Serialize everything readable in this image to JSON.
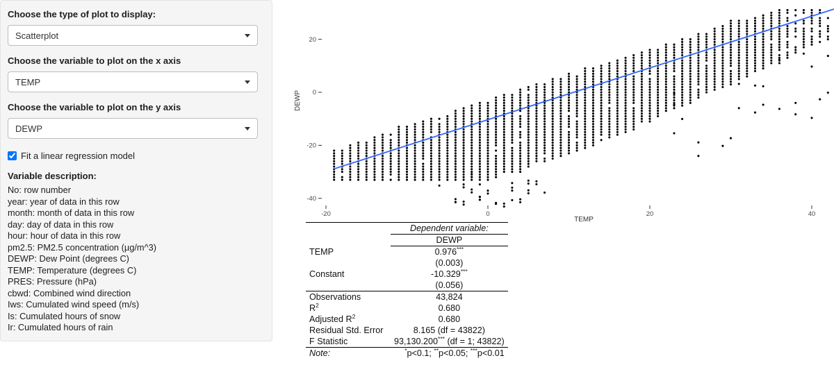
{
  "sidebar": {
    "plot_type": {
      "label": "Choose the type of plot to display:",
      "value": "Scatterplot"
    },
    "x_axis": {
      "label": "Choose the variable to plot on the x axis",
      "value": "TEMP"
    },
    "y_axis": {
      "label": "Choose the variable to plot on the y axis",
      "value": "DEWP"
    },
    "regression": {
      "label": "Fit a linear regression model",
      "checked": true
    },
    "variable_description": {
      "title": "Variable description:",
      "items": [
        "No: row number",
        "year: year of data in this row",
        "month: month of data in this row",
        "day: day of data in this row",
        "hour: hour of data in this row",
        "pm2.5: PM2.5 concentration (µg/m^3)",
        "DEWP: Dew Point (degrees C)",
        "TEMP: Temperature (degrees C)",
        "PRES: Pressure (hPa)",
        "cbwd: Combined wind direction",
        "Iws: Cumulated wind speed (m/s)",
        "Is: Cumulated hours of snow",
        "Ir: Cumulated hours of rain"
      ]
    }
  },
  "chart_data": {
    "type": "scatter",
    "title": "",
    "xlabel": "TEMP",
    "ylabel": "DEWP",
    "x_ticks": [
      -20,
      0,
      20,
      40
    ],
    "y_ticks": [
      20,
      0,
      -20,
      -40
    ],
    "x_range_data": [
      -19,
      43
    ],
    "y_range_data": [
      -43,
      31
    ],
    "n_points": 43824,
    "point_color": "#000000",
    "grid": false,
    "regression_line": {
      "slope": 0.976,
      "intercept": -10.329,
      "color": "#3366FF"
    }
  },
  "table": {
    "top_header": "Dependent variable:",
    "dep_var": "DEWP",
    "coef_rows": [
      {
        "label": "TEMP",
        "value": "0.976",
        "stars": "***"
      },
      {
        "label": "",
        "value": "(0.003)",
        "stars": ""
      },
      {
        "label": "Constant",
        "value": "-10.329",
        "stars": "***"
      },
      {
        "label": "",
        "value": "(0.056)",
        "stars": ""
      }
    ],
    "stat_rows": [
      {
        "label": "Observations",
        "value": "43,824"
      },
      {
        "label": "R",
        "label_sup": "2",
        "value": "0.680"
      },
      {
        "label": "Adjusted R",
        "label_sup": "2",
        "value": "0.680"
      },
      {
        "label": "Residual Std. Error",
        "value": "8.165 (df = 43822)"
      },
      {
        "label": "F Statistic",
        "value": "93,130.200",
        "stars": "***",
        "value_suffix": " (df = 1; 43822)"
      }
    ],
    "note": {
      "label": "Note:",
      "parts": [
        {
          "stars": "*",
          "text": "p<0.1; "
        },
        {
          "stars": "**",
          "text": "p<0.05; "
        },
        {
          "stars": "***",
          "text": "p<0.01"
        }
      ]
    }
  }
}
